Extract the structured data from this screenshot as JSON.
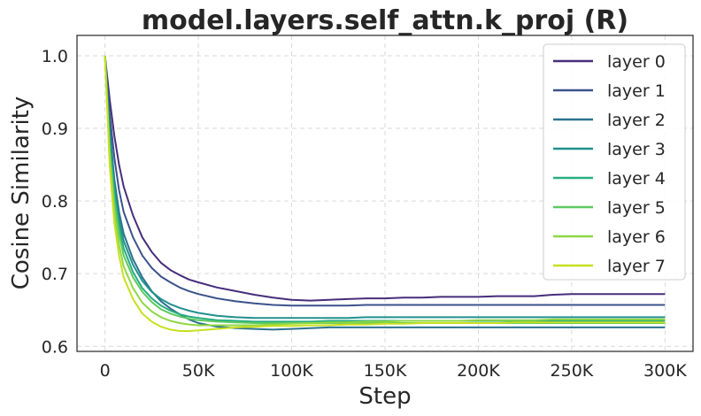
{
  "chart_data": {
    "type": "line",
    "title": "model.layers.self_attn.k_proj (R)",
    "xlabel": "Step",
    "ylabel": "Cosine Similarity",
    "xlim": [
      -15000,
      315000
    ],
    "ylim": [
      0.593,
      1.028
    ],
    "xticks": [
      0,
      50000,
      100000,
      150000,
      200000,
      250000,
      300000
    ],
    "xtick_labels": [
      "0",
      "50K",
      "100K",
      "150K",
      "200K",
      "250K",
      "300K"
    ],
    "yticks": [
      0.6,
      0.7,
      0.8,
      0.9,
      1.0
    ],
    "ytick_labels": [
      "0.6",
      "0.7",
      "0.8",
      "0.9",
      "1.0"
    ],
    "grid": true,
    "legend_position": "top-right",
    "series": [
      {
        "name": "layer 0",
        "color": "#472d7b",
        "x": [
          0,
          2500,
          5000,
          7500,
          10000,
          15000,
          20000,
          25000,
          30000,
          35000,
          40000,
          45000,
          50000,
          60000,
          70000,
          80000,
          90000,
          100000,
          110000,
          120000,
          130000,
          140000,
          150000,
          160000,
          170000,
          180000,
          190000,
          200000,
          210000,
          220000,
          230000,
          240000,
          250000,
          260000,
          270000,
          280000,
          290000,
          300000
        ],
        "y": [
          1.0,
          0.94,
          0.89,
          0.85,
          0.82,
          0.78,
          0.75,
          0.73,
          0.715,
          0.705,
          0.698,
          0.692,
          0.688,
          0.681,
          0.676,
          0.671,
          0.667,
          0.664,
          0.663,
          0.664,
          0.665,
          0.666,
          0.666,
          0.667,
          0.667,
          0.668,
          0.668,
          0.668,
          0.669,
          0.669,
          0.669,
          0.671,
          0.672,
          0.672,
          0.672,
          0.672,
          0.672,
          0.672
        ]
      },
      {
        "name": "layer 1",
        "color": "#3b528b",
        "x": [
          0,
          2500,
          5000,
          7500,
          10000,
          15000,
          20000,
          25000,
          30000,
          35000,
          40000,
          45000,
          50000,
          60000,
          70000,
          80000,
          90000,
          100000,
          110000,
          120000,
          130000,
          140000,
          150000,
          160000,
          170000,
          180000,
          190000,
          200000,
          210000,
          220000,
          230000,
          240000,
          250000,
          260000,
          270000,
          280000,
          290000,
          300000
        ],
        "y": [
          1.0,
          0.92,
          0.86,
          0.815,
          0.785,
          0.75,
          0.725,
          0.708,
          0.696,
          0.688,
          0.681,
          0.676,
          0.672,
          0.666,
          0.662,
          0.659,
          0.657,
          0.656,
          0.656,
          0.656,
          0.656,
          0.657,
          0.657,
          0.657,
          0.657,
          0.657,
          0.657,
          0.657,
          0.657,
          0.657,
          0.657,
          0.657,
          0.657,
          0.657,
          0.657,
          0.657,
          0.657,
          0.657
        ]
      },
      {
        "name": "layer 2",
        "color": "#2c728e",
        "x": [
          0,
          2500,
          5000,
          7500,
          10000,
          15000,
          20000,
          25000,
          30000,
          35000,
          40000,
          45000,
          50000,
          60000,
          70000,
          80000,
          90000,
          100000,
          110000,
          120000,
          130000,
          140000,
          150000,
          160000,
          170000,
          180000,
          190000,
          200000,
          210000,
          220000,
          230000,
          240000,
          250000,
          260000,
          270000,
          280000,
          290000,
          300000
        ],
        "y": [
          1.0,
          0.9,
          0.83,
          0.785,
          0.755,
          0.72,
          0.695,
          0.676,
          0.662,
          0.652,
          0.644,
          0.637,
          0.632,
          0.627,
          0.625,
          0.624,
          0.623,
          0.624,
          0.625,
          0.626,
          0.626,
          0.626,
          0.626,
          0.626,
          0.626,
          0.626,
          0.626,
          0.626,
          0.626,
          0.626,
          0.626,
          0.626,
          0.626,
          0.626,
          0.626,
          0.626,
          0.626,
          0.626
        ]
      },
      {
        "name": "layer 3",
        "color": "#21908d",
        "x": [
          0,
          2500,
          5000,
          7500,
          10000,
          15000,
          20000,
          25000,
          30000,
          35000,
          40000,
          45000,
          50000,
          60000,
          70000,
          80000,
          90000,
          100000,
          110000,
          120000,
          130000,
          140000,
          150000,
          160000,
          170000,
          180000,
          190000,
          200000,
          210000,
          220000,
          230000,
          240000,
          250000,
          260000,
          270000,
          280000,
          290000,
          300000
        ],
        "y": [
          1.0,
          0.89,
          0.82,
          0.775,
          0.745,
          0.712,
          0.69,
          0.675,
          0.665,
          0.658,
          0.653,
          0.649,
          0.646,
          0.642,
          0.64,
          0.639,
          0.639,
          0.639,
          0.639,
          0.639,
          0.639,
          0.64,
          0.64,
          0.64,
          0.64,
          0.64,
          0.64,
          0.64,
          0.64,
          0.64,
          0.64,
          0.64,
          0.64,
          0.64,
          0.64,
          0.64,
          0.64,
          0.64
        ]
      },
      {
        "name": "layer 4",
        "color": "#27ad81",
        "x": [
          0,
          2500,
          5000,
          7500,
          10000,
          15000,
          20000,
          25000,
          30000,
          35000,
          40000,
          45000,
          50000,
          60000,
          70000,
          80000,
          90000,
          100000,
          110000,
          120000,
          130000,
          140000,
          150000,
          160000,
          170000,
          180000,
          190000,
          200000,
          210000,
          220000,
          230000,
          240000,
          250000,
          260000,
          270000,
          280000,
          290000,
          300000
        ],
        "y": [
          1.0,
          0.88,
          0.81,
          0.765,
          0.735,
          0.702,
          0.68,
          0.666,
          0.656,
          0.649,
          0.644,
          0.641,
          0.639,
          0.636,
          0.635,
          0.634,
          0.634,
          0.634,
          0.634,
          0.635,
          0.635,
          0.635,
          0.635,
          0.635,
          0.635,
          0.635,
          0.635,
          0.635,
          0.635,
          0.635,
          0.635,
          0.635,
          0.635,
          0.635,
          0.635,
          0.635,
          0.635,
          0.635
        ]
      },
      {
        "name": "layer 5",
        "color": "#5ec962",
        "x": [
          0,
          2500,
          5000,
          7500,
          10000,
          15000,
          20000,
          25000,
          30000,
          35000,
          40000,
          45000,
          50000,
          60000,
          70000,
          80000,
          90000,
          100000,
          110000,
          120000,
          130000,
          140000,
          150000,
          160000,
          170000,
          180000,
          190000,
          200000,
          210000,
          220000,
          230000,
          240000,
          250000,
          260000,
          270000,
          280000,
          290000,
          300000
        ],
        "y": [
          1.0,
          0.87,
          0.8,
          0.755,
          0.725,
          0.695,
          0.675,
          0.661,
          0.651,
          0.645,
          0.641,
          0.638,
          0.636,
          0.634,
          0.633,
          0.632,
          0.632,
          0.632,
          0.632,
          0.632,
          0.632,
          0.632,
          0.632,
          0.632,
          0.632,
          0.632,
          0.632,
          0.632,
          0.632,
          0.632,
          0.632,
          0.632,
          0.632,
          0.632,
          0.632,
          0.632,
          0.632,
          0.632
        ]
      },
      {
        "name": "layer 6",
        "color": "#8fd744",
        "x": [
          0,
          2500,
          5000,
          7500,
          10000,
          15000,
          20000,
          25000,
          30000,
          35000,
          40000,
          45000,
          50000,
          60000,
          70000,
          80000,
          90000,
          100000,
          110000,
          120000,
          130000,
          140000,
          150000,
          160000,
          170000,
          180000,
          190000,
          200000,
          210000,
          220000,
          230000,
          240000,
          250000,
          260000,
          270000,
          280000,
          290000,
          300000
        ],
        "y": [
          1.0,
          0.86,
          0.785,
          0.74,
          0.71,
          0.68,
          0.66,
          0.648,
          0.64,
          0.635,
          0.632,
          0.63,
          0.629,
          0.629,
          0.629,
          0.629,
          0.63,
          0.631,
          0.632,
          0.633,
          0.633,
          0.634,
          0.634,
          0.635,
          0.635,
          0.635,
          0.635,
          0.636,
          0.636,
          0.636,
          0.636,
          0.637,
          0.637,
          0.637,
          0.637,
          0.637,
          0.637,
          0.637
        ]
      },
      {
        "name": "layer 7",
        "color": "#c8e020",
        "x": [
          0,
          2500,
          5000,
          7500,
          10000,
          15000,
          20000,
          25000,
          30000,
          35000,
          40000,
          45000,
          50000,
          60000,
          70000,
          80000,
          90000,
          100000,
          110000,
          120000,
          130000,
          140000,
          150000,
          160000,
          170000,
          180000,
          190000,
          200000,
          210000,
          220000,
          230000,
          240000,
          250000,
          260000,
          270000,
          280000,
          290000,
          300000
        ],
        "y": [
          1.0,
          0.85,
          0.77,
          0.725,
          0.695,
          0.665,
          0.645,
          0.634,
          0.627,
          0.623,
          0.621,
          0.621,
          0.622,
          0.624,
          0.626,
          0.627,
          0.628,
          0.628,
          0.629,
          0.629,
          0.63,
          0.63,
          0.631,
          0.631,
          0.632,
          0.632,
          0.632,
          0.632,
          0.632,
          0.633,
          0.633,
          0.633,
          0.633,
          0.633,
          0.633,
          0.633,
          0.633,
          0.633
        ]
      }
    ]
  }
}
